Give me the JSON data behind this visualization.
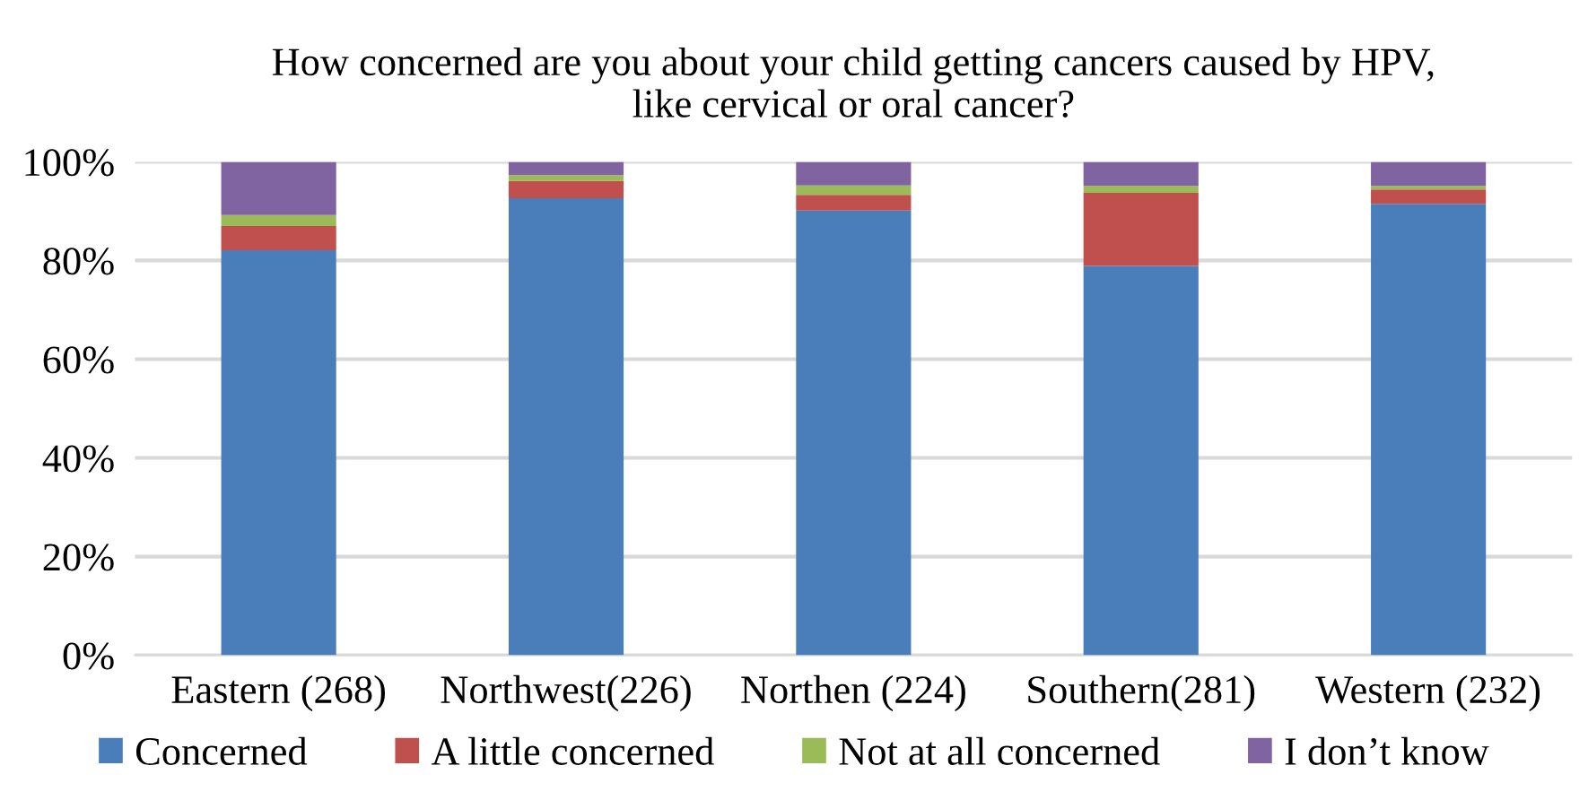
{
  "chart_data": {
    "type": "bar",
    "stacked": true,
    "title": "How concerned are you about your child getting cancers caused by HPV,\nlike cervical or oral cancer?",
    "categories": [
      "Eastern (268)",
      "Northwest(226)",
      "Northen (224)",
      "Southern(281)",
      "Western (232)"
    ],
    "series": [
      {
        "name": "Concerned",
        "color": "#4a7ebb",
        "values": [
          82.1,
          92.6,
          90.1,
          78.9,
          91.5
        ]
      },
      {
        "name": "A little concerned",
        "color": "#c0504d",
        "values": [
          4.9,
          3.5,
          3.2,
          14.8,
          2.9
        ]
      },
      {
        "name": "Not at all concerned",
        "color": "#9bbb59",
        "values": [
          2.2,
          1.2,
          1.9,
          1.4,
          0.7
        ]
      },
      {
        "name": "I don’t know",
        "color": "#8064a2",
        "values": [
          10.8,
          2.7,
          4.8,
          4.9,
          4.9
        ]
      }
    ],
    "ylim": [
      0,
      100
    ],
    "yticks": [
      {
        "value": 0,
        "label": "0%"
      },
      {
        "value": 20,
        "label": "20%"
      },
      {
        "value": 40,
        "label": "40%"
      },
      {
        "value": 60,
        "label": "60%"
      },
      {
        "value": 80,
        "label": "80%"
      },
      {
        "value": 100,
        "label": "100%"
      }
    ],
    "grid": "y",
    "legend": "bottom"
  }
}
